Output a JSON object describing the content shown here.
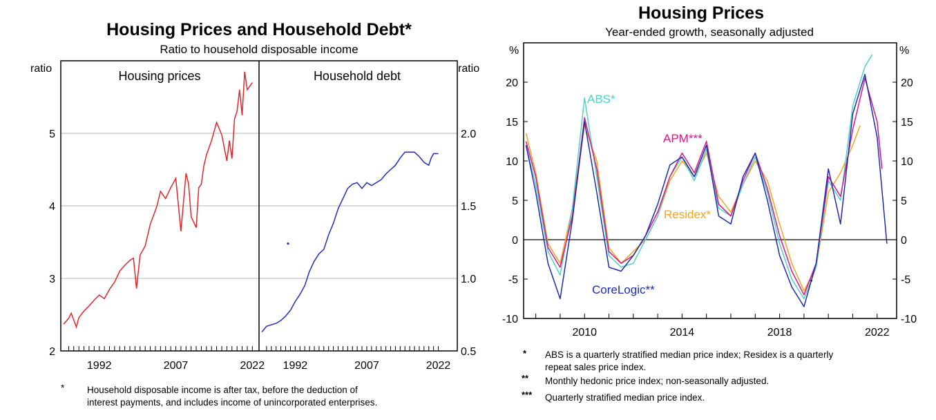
{
  "left": {
    "title": "Housing Prices and Household Debt*",
    "subtitle": "Ratio to household disposable income",
    "unit_label_left": "ratio",
    "unit_label_right": "ratio",
    "footnote_marker": "*",
    "footnote_line1": "Household disposable income is after tax, before the deduction of",
    "footnote_line2": "interest payments, and includes income of unincorporated enterprises."
  },
  "right": {
    "title": "Housing Prices",
    "subtitle": "Year-ended growth, seasonally adjusted",
    "unit_label_left": "%",
    "unit_label_right": "%",
    "notes": [
      {
        "marker": "*",
        "line1": "ABS is a quarterly stratified median price index; Residex is a quarterly",
        "line2": "repeat sales price index."
      },
      {
        "marker": "**",
        "line1": "Monthly hedonic price index; non-seasonally adjusted.",
        "line2": ""
      },
      {
        "marker": "***",
        "line1": "Quarterly stratified median price index.",
        "line2": ""
      }
    ]
  },
  "colors": {
    "housing": "#e0262b",
    "debt": "#1f2fb8",
    "abs": "#4fd1c5",
    "apm": "#d6168a",
    "residex": "#f3a51c",
    "corelogic": "#1c2bb0",
    "grid": "#b3b3b3"
  },
  "chart_data": [
    {
      "type": "line",
      "title": "Housing prices",
      "ylabel": "ratio",
      "xlim": [
        1985,
        2022.5
      ],
      "ylim": [
        2,
        6
      ],
      "yticks": [
        "2",
        "3",
        "4",
        "5"
      ],
      "xticks": [
        "1992",
        "2007",
        "2022"
      ],
      "series": [
        {
          "name": "Housing prices",
          "x": [
            1985.0,
            1986.0,
            1986.5,
            1987.5,
            1988.0,
            1989.0,
            1990.0,
            1991.0,
            1992.0,
            1993.0,
            1994.0,
            1995.0,
            1996.0,
            1997.0,
            1998.0,
            1998.7,
            1999.3,
            2000.0,
            2001.0,
            2002.0,
            2002.7,
            2003.3,
            2004.0,
            2005.0,
            2006.0,
            2007.0,
            2008.0,
            2009.0,
            2009.5,
            2010.0,
            2011.0,
            2011.5,
            2012.0,
            2012.5,
            2013.0,
            2014.0,
            2015.0,
            2016.0,
            2017.0,
            2017.5,
            2018.0,
            2018.5,
            2019.0,
            2019.5,
            2020.0,
            2020.5,
            2021.0,
            2021.5,
            2022.0
          ],
          "values": [
            2.37,
            2.45,
            2.52,
            2.33,
            2.46,
            2.55,
            2.62,
            2.7,
            2.77,
            2.72,
            2.85,
            2.95,
            3.1,
            3.18,
            3.25,
            3.28,
            2.86,
            3.32,
            3.45,
            3.75,
            3.88,
            4.0,
            4.2,
            4.1,
            4.25,
            4.38,
            3.65,
            4.45,
            4.3,
            3.85,
            3.7,
            4.25,
            4.3,
            4.55,
            4.7,
            4.9,
            5.15,
            4.98,
            4.62,
            4.9,
            4.65,
            5.2,
            5.3,
            5.6,
            5.25,
            5.85,
            5.6,
            5.65,
            5.7
          ]
        }
      ]
    },
    {
      "type": "line",
      "title": "Household debt",
      "ylabel": "ratio",
      "xlim": [
        1985,
        2022.5
      ],
      "ylim": [
        0.5,
        2.5
      ],
      "yticks": [
        "0.5",
        "1.0",
        "1.5",
        "2.0"
      ],
      "xticks": [
        "1992",
        "2007",
        "2022"
      ],
      "series": [
        {
          "name": "Household debt",
          "x": [
            1985.0,
            1986.0,
            1987.0,
            1988.0,
            1989.0,
            1990.0,
            1991.0,
            1992.0,
            1993.0,
            1994.0,
            1995.0,
            1996.0,
            1997.0,
            1998.0,
            1999.0,
            2000.0,
            2001.0,
            2002.0,
            2003.0,
            2004.0,
            2005.0,
            2006.0,
            2007.0,
            2008.0,
            2009.0,
            2010.0,
            2011.0,
            2012.0,
            2013.0,
            2014.0,
            2015.0,
            2016.0,
            2017.0,
            2018.0,
            2019.0,
            2020.0,
            2020.5,
            2021.0,
            2021.5,
            2022.0
          ],
          "values": [
            0.63,
            0.67,
            0.68,
            0.69,
            0.71,
            0.74,
            0.78,
            0.84,
            0.89,
            0.95,
            1.05,
            1.12,
            1.17,
            1.2,
            1.3,
            1.38,
            1.48,
            1.55,
            1.62,
            1.65,
            1.66,
            1.62,
            1.66,
            1.64,
            1.66,
            1.68,
            1.72,
            1.75,
            1.78,
            1.83,
            1.87,
            1.87,
            1.87,
            1.84,
            1.8,
            1.78,
            1.83,
            1.86,
            1.86,
            1.86
          ]
        }
      ],
      "points": [
        {
          "x": 1990.5,
          "value": 1.24
        }
      ]
    },
    {
      "type": "line",
      "title": "Housing Prices",
      "subtitle": "Year-ended growth, seasonally adjusted",
      "ylabel": "%",
      "xlim": [
        2007.5,
        2022.8
      ],
      "ylim": [
        -10,
        25
      ],
      "yticks": [
        "-10",
        "-5",
        "0",
        "5",
        "10",
        "15",
        "20"
      ],
      "xticks": [
        "2010",
        "2014",
        "2018",
        "2022"
      ],
      "series": [
        {
          "name": "ABS*",
          "x": [
            2007.6,
            2008.0,
            2008.5,
            2009.0,
            2009.5,
            2010.0,
            2010.5,
            2011.0,
            2011.5,
            2012.0,
            2012.5,
            2013.0,
            2013.5,
            2014.0,
            2014.5,
            2015.0,
            2015.5,
            2016.0,
            2016.5,
            2017.0,
            2017.5,
            2018.0,
            2018.5,
            2019.0,
            2019.5,
            2020.0,
            2020.5,
            2021.0,
            2021.5,
            2021.8
          ],
          "values": [
            12.0,
            7.0,
            -1.5,
            -4.5,
            4.0,
            18.0,
            8.0,
            -2.0,
            -3.5,
            -3.0,
            0.0,
            3.0,
            8.0,
            10.5,
            7.5,
            11.5,
            4.0,
            3.0,
            7.0,
            10.5,
            6.0,
            -0.5,
            -5.0,
            -7.5,
            -3.5,
            7.5,
            5.0,
            17.0,
            22.0,
            23.5
          ]
        },
        {
          "name": "APM***",
          "x": [
            2007.6,
            2008.0,
            2008.5,
            2009.0,
            2009.5,
            2010.0,
            2010.5,
            2011.0,
            2011.5,
            2012.0,
            2012.5,
            2013.0,
            2013.5,
            2014.0,
            2014.5,
            2015.0,
            2015.5,
            2016.0,
            2016.5,
            2017.0,
            2017.5,
            2018.0,
            2018.5,
            2019.0,
            2019.5,
            2020.0,
            2020.5,
            2021.0,
            2021.5,
            2022.0,
            2022.2
          ],
          "values": [
            12.5,
            8.0,
            -1.0,
            -3.5,
            3.0,
            15.5,
            9.0,
            -1.5,
            -3.0,
            -2.0,
            0.5,
            3.5,
            8.0,
            11.0,
            8.5,
            12.5,
            4.5,
            3.0,
            7.5,
            11.0,
            6.5,
            0.5,
            -4.0,
            -7.0,
            -3.0,
            8.0,
            5.5,
            14.0,
            20.5,
            15.0,
            9.0
          ]
        },
        {
          "name": "Residex*",
          "x": [
            2007.6,
            2008.0,
            2008.5,
            2009.0,
            2009.5,
            2010.0,
            2010.5,
            2011.0,
            2011.5,
            2012.0,
            2012.5,
            2013.0,
            2013.5,
            2014.0,
            2014.5,
            2015.0,
            2015.5,
            2016.0,
            2016.5,
            2017.0,
            2017.5,
            2018.0,
            2018.5,
            2019.0,
            2019.5,
            2020.0,
            2020.5,
            2021.0,
            2021.3
          ],
          "values": [
            13.5,
            8.5,
            -0.5,
            -3.0,
            4.0,
            14.5,
            10.0,
            -1.0,
            -3.0,
            -1.5,
            0.0,
            3.0,
            7.5,
            10.0,
            8.0,
            11.0,
            5.5,
            3.5,
            7.0,
            10.0,
            7.5,
            2.0,
            -3.0,
            -6.5,
            -3.5,
            6.0,
            8.5,
            12.0,
            14.5
          ]
        },
        {
          "name": "CoreLogic**",
          "x": [
            2007.6,
            2008.0,
            2008.5,
            2009.0,
            2009.5,
            2010.0,
            2010.5,
            2011.0,
            2011.5,
            2012.0,
            2012.5,
            2013.0,
            2013.5,
            2014.0,
            2014.5,
            2015.0,
            2015.5,
            2016.0,
            2016.5,
            2017.0,
            2017.5,
            2018.0,
            2018.5,
            2019.0,
            2019.5,
            2020.0,
            2020.5,
            2021.0,
            2021.5,
            2022.0,
            2022.4
          ],
          "values": [
            12.0,
            6.0,
            -3.0,
            -7.5,
            2.5,
            15.0,
            6.0,
            -3.5,
            -4.0,
            -2.0,
            0.5,
            4.5,
            9.5,
            10.5,
            8.0,
            12.0,
            3.0,
            2.0,
            8.0,
            11.0,
            5.0,
            -2.0,
            -6.0,
            -8.5,
            -3.0,
            9.0,
            2.0,
            16.0,
            21.0,
            13.0,
            -0.5
          ]
        }
      ],
      "labels": [
        "ABS*",
        "APM***",
        "Residex*",
        "CoreLogic**"
      ],
      "points": [
        {
          "x": 2019.3,
          "value": -5.2
        }
      ]
    }
  ]
}
